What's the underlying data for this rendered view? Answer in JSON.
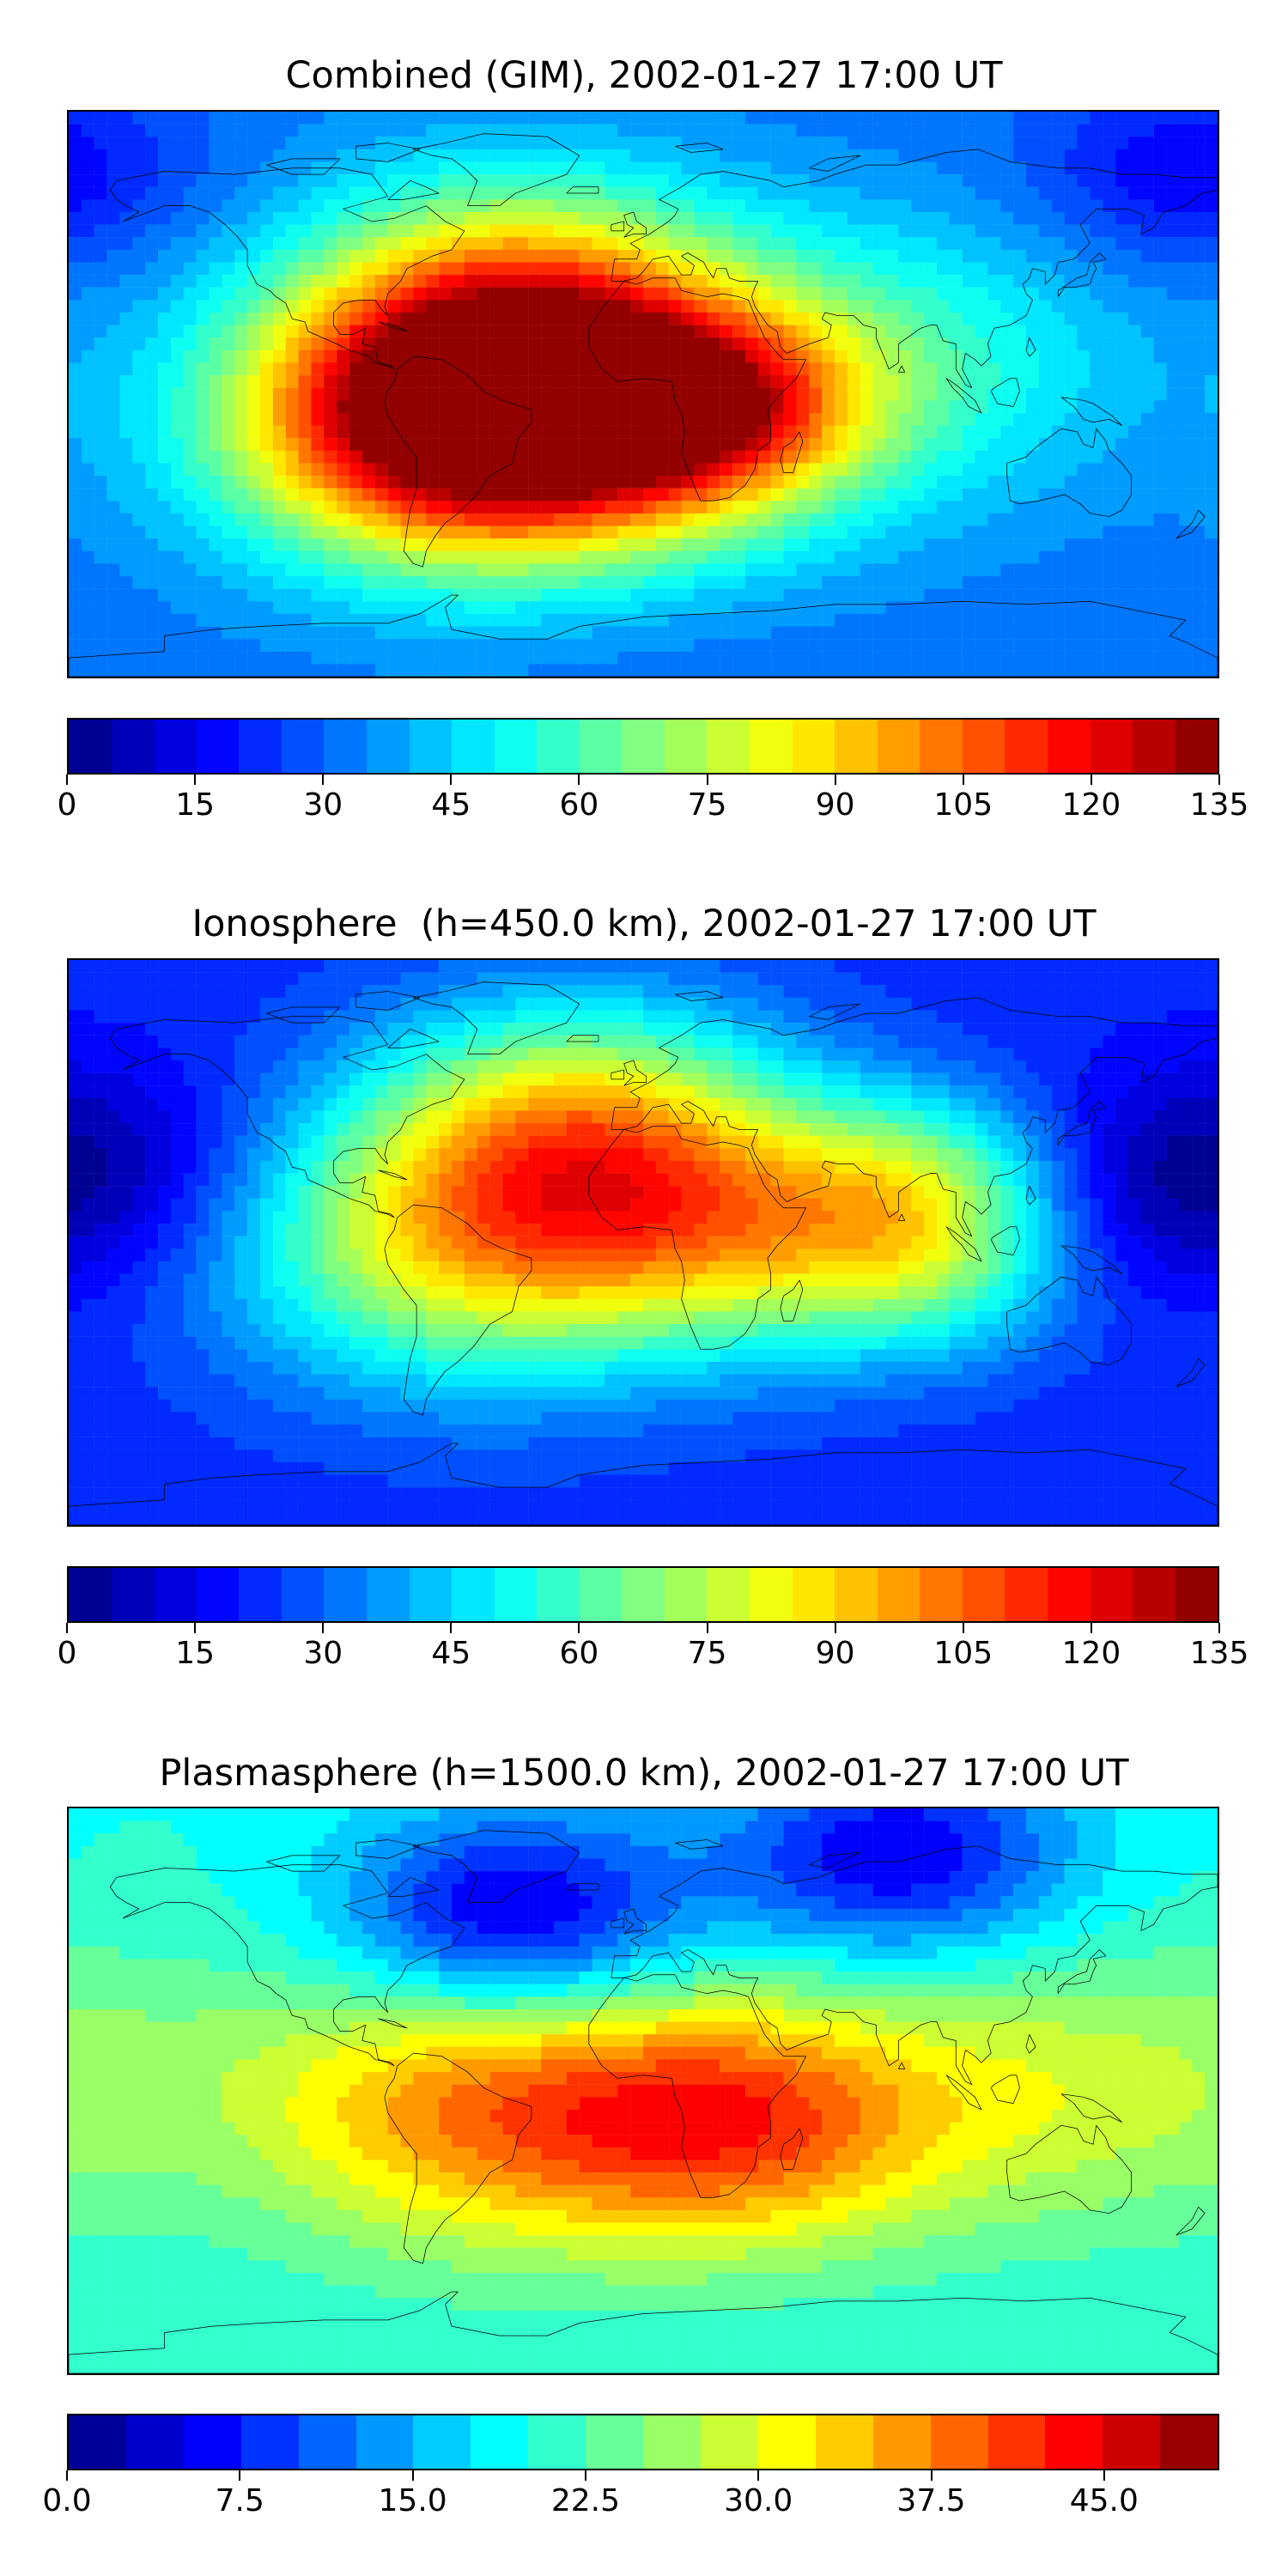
{
  "maps": [
    {
      "id": "combined",
      "title": "Combined (GIM), 2002-01-27 17:00 UT",
      "colorbar": {
        "min": 0,
        "max": 135,
        "levels": 27,
        "tick_labels": [
          "0",
          "15",
          "30",
          "45",
          "60",
          "75",
          "90",
          "105",
          "120",
          "135"
        ]
      },
      "field": {
        "background_value": 32,
        "features": [
          {
            "lon": -60,
            "lat": -8,
            "value": 125,
            "spread": 38
          },
          {
            "lon": -15,
            "lat": -5,
            "value": 92,
            "spread": 40
          },
          {
            "lon": 20,
            "lat": -5,
            "value": 72,
            "spread": 25
          },
          {
            "lon": -40,
            "lat": 35,
            "value": 70,
            "spread": 35
          },
          {
            "lon": 80,
            "lat": 10,
            "value": 55,
            "spread": 40
          },
          {
            "lon": 170,
            "lat": 70,
            "value": 15,
            "spread": 25
          },
          {
            "lon": 0,
            "lat": -80,
            "value": 30,
            "spread": 30
          }
        ]
      }
    },
    {
      "id": "ionosphere",
      "title": "Ionosphere  (h=450.0 km), 2002-01-27 17:00 UT",
      "colorbar": {
        "min": 0,
        "max": 135,
        "levels": 27,
        "tick_labels": [
          "0",
          "15",
          "30",
          "45",
          "60",
          "75",
          "90",
          "105",
          "120",
          "135"
        ]
      },
      "field": {
        "background_value": 22,
        "features": [
          {
            "lon": -55,
            "lat": 0,
            "value": 82,
            "spread": 40
          },
          {
            "lon": -20,
            "lat": 40,
            "value": 72,
            "spread": 35
          },
          {
            "lon": 30,
            "lat": 5,
            "value": 70,
            "spread": 35
          },
          {
            "lon": 90,
            "lat": 20,
            "value": 55,
            "spread": 25
          },
          {
            "lon": 90,
            "lat": -10,
            "value": 50,
            "spread": 25
          },
          {
            "lon": -170,
            "lat": 25,
            "value": 8,
            "spread": 30
          },
          {
            "lon": 160,
            "lat": 15,
            "value": 10,
            "spread": 30
          }
        ]
      }
    },
    {
      "id": "plasmasphere",
      "title": "Plasmasphere (h=1500.0 km), 2002-01-27 17:00 UT",
      "colorbar": {
        "min": 0,
        "max": 50,
        "levels": 20,
        "tick_labels": [
          "0.0",
          "7.5",
          "15.0",
          "22.5",
          "30.0",
          "37.5",
          "45.0"
        ],
        "tick_values": [
          0,
          7.5,
          15,
          22.5,
          30,
          37.5,
          45
        ]
      },
      "field": {
        "background_value": 20,
        "features": [
          {
            "lon": -50,
            "lat": -5,
            "value": 36,
            "spread": 40
          },
          {
            "lon": 30,
            "lat": -10,
            "value": 38,
            "spread": 35
          },
          {
            "lon": -40,
            "lat": 55,
            "value": 3,
            "spread": 30
          },
          {
            "lon": 80,
            "lat": 75,
            "value": 5,
            "spread": 30
          },
          {
            "lon": 130,
            "lat": 0,
            "value": 28,
            "spread": 40
          },
          {
            "lon": -150,
            "lat": 5,
            "value": 22,
            "spread": 40
          }
        ]
      }
    }
  ]
}
